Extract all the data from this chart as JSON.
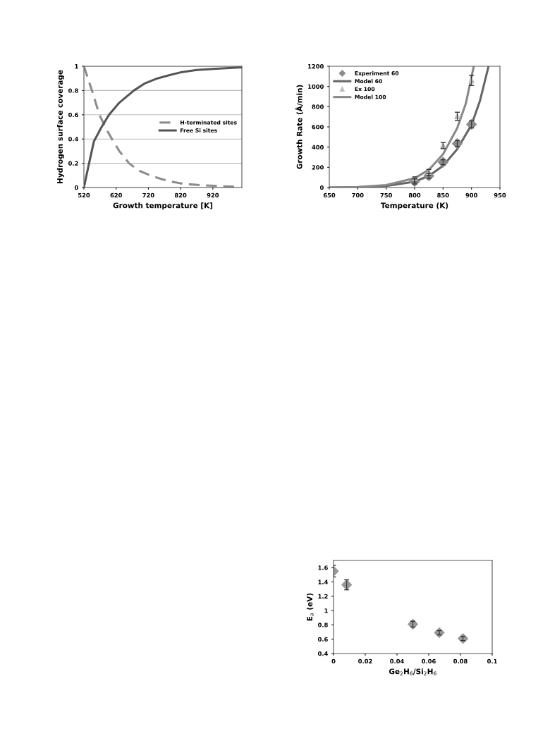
{
  "chart_data": [
    {
      "type": "line",
      "xlabel": "Growth temperature [K]",
      "ylabel": "Hydrogen surface coverage",
      "xlim": [
        520,
        1010
      ],
      "ylim": [
        0,
        1
      ],
      "xticks": [
        520,
        620,
        720,
        820,
        920
      ],
      "yticks": [
        0,
        0.2,
        0.4,
        0.6,
        0.8,
        1
      ],
      "grid": "y",
      "legend": "center right",
      "marker": "none",
      "series": [
        {
          "name": "H-terminated sites",
          "color": "#8c8c8c",
          "line_style": "dashed",
          "x": [
            520,
            530,
            545,
            568,
            590,
            607,
            630,
            660,
            690,
            726,
            760,
            790,
            830,
            880,
            950,
            1000
          ],
          "values": [
            1,
            0.92,
            0.8,
            0.6,
            0.48,
            0.4,
            0.3,
            0.2,
            0.14,
            0.1,
            0.07,
            0.05,
            0.03,
            0.02,
            0.01,
            0.005
          ]
        },
        {
          "name": "Free Si sites",
          "color": "#555555",
          "line_style": "solid",
          "x": [
            520,
            528,
            536,
            551,
            575,
            598,
            630,
            675,
            710,
            748,
            790,
            821,
            870,
            931,
            1000,
            1010
          ],
          "values": [
            0,
            0.1,
            0.2,
            0.38,
            0.5,
            0.6,
            0.7,
            0.8,
            0.86,
            0.9,
            0.93,
            0.95,
            0.97,
            0.98,
            0.99,
            0.99
          ]
        }
      ]
    },
    {
      "type": "line",
      "xlabel": "Temperature (K)",
      "ylabel": "Growth Rate (Å/min)",
      "xlim": [
        650,
        950
      ],
      "ylim": [
        0,
        1200
      ],
      "xticks": [
        650,
        700,
        750,
        800,
        850,
        900,
        950
      ],
      "yticks": [
        0,
        200,
        400,
        600,
        800,
        1000,
        1200
      ],
      "grid": false,
      "legend": "top left",
      "series": [
        {
          "name": "Experiment 60",
          "type": "scatter",
          "marker": "diamond",
          "color": "#8a8a8a",
          "x": [
            800,
            825,
            850,
            875,
            900
          ],
          "values": [
            60,
            115,
            250,
            435,
            625
          ],
          "errors": [
            25,
            25,
            25,
            30,
            35
          ]
        },
        {
          "name": "Model 60",
          "type": "line",
          "marker": "none",
          "color": "#666666",
          "x": [
            650,
            700,
            750,
            800,
            825,
            850,
            875,
            900,
            915,
            930
          ],
          "values": [
            0,
            3,
            15,
            58,
            115,
            215,
            380,
            620,
            860,
            1200
          ]
        },
        {
          "name": "Ex 100",
          "type": "scatter",
          "marker": "triangle",
          "color": "#bdbdbd",
          "x": [
            800,
            825,
            850,
            875,
            900
          ],
          "values": [
            80,
            150,
            415,
            705,
            1060
          ],
          "errors": [
            25,
            30,
            30,
            40,
            50
          ]
        },
        {
          "name": "Model 100",
          "type": "line",
          "marker": "none",
          "color": "#888888",
          "x": [
            650,
            700,
            750,
            800,
            825,
            850,
            875,
            890,
            904
          ],
          "values": [
            0,
            5,
            25,
            92,
            175,
            330,
            590,
            830,
            1200
          ]
        }
      ]
    },
    {
      "type": "scatter",
      "xlabel": "Ge$_{2}$H$_{6}$/Si$_{2}$H$_{6}$",
      "ylabel": "E$_{a}$ (eV)",
      "xlim": [
        0,
        0.1
      ],
      "ylim": [
        0.4,
        1.7
      ],
      "xticks": [
        0,
        0.02,
        0.04,
        0.06,
        0.08,
        0.1
      ],
      "yticks": [
        0.4,
        0.6,
        0.8,
        1,
        1.2,
        1.4,
        1.6
      ],
      "grid": false,
      "marker": "diamond",
      "series": [
        {
          "color": "#999999",
          "x": [
            0,
            0.0083,
            0.05,
            0.0667,
            0.0816
          ],
          "values": [
            1.55,
            1.36,
            0.81,
            0.69,
            0.61
          ],
          "errors": [
            0.08,
            0.07,
            0.04,
            0.03,
            0.03
          ]
        }
      ]
    }
  ]
}
